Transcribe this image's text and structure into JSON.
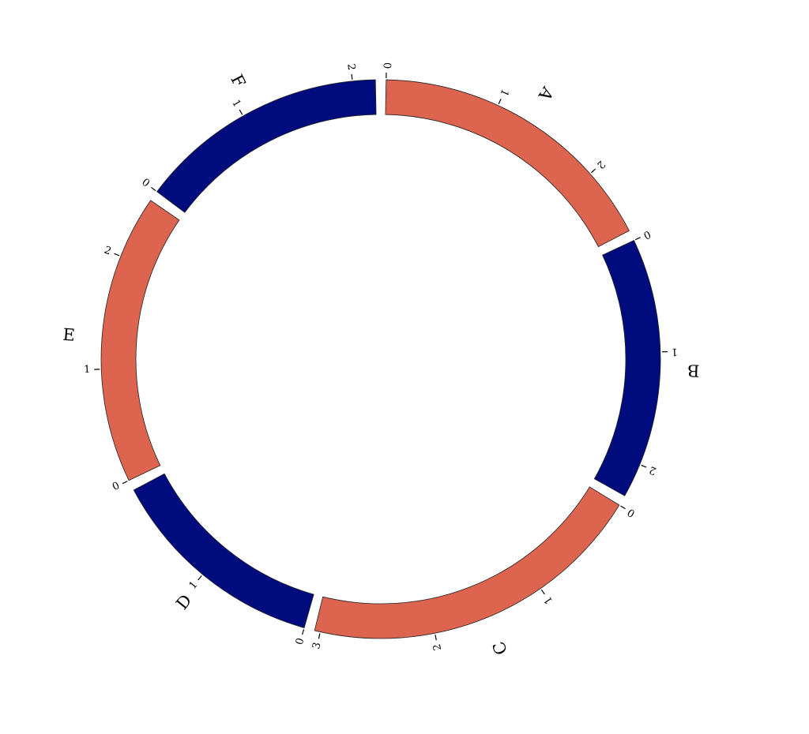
{
  "chart_data": {
    "type": "chord-ideogram",
    "title": "",
    "segments": [
      {
        "name": "A",
        "length": 2.6,
        "color": "#dd644e",
        "ticks": [
          "0",
          "1",
          "2"
        ]
      },
      {
        "name": "B",
        "length": 2.3,
        "color": "#000c7d",
        "ticks": [
          "0",
          "1",
          "2"
        ]
      },
      {
        "name": "C",
        "length": 3.05,
        "color": "#dd644e",
        "ticks": [
          "0",
          "1",
          "2",
          "3"
        ]
      },
      {
        "name": "D",
        "length": 1.95,
        "color": "#000c7d",
        "ticks": [
          "0",
          "1"
        ]
      },
      {
        "name": "E",
        "length": 2.55,
        "color": "#dd644e",
        "ticks": [
          "0",
          "1",
          "2"
        ]
      },
      {
        "name": "F",
        "length": 2.2,
        "color": "#000c7d",
        "ticks": [
          "0",
          "1",
          "2"
        ]
      }
    ]
  }
}
